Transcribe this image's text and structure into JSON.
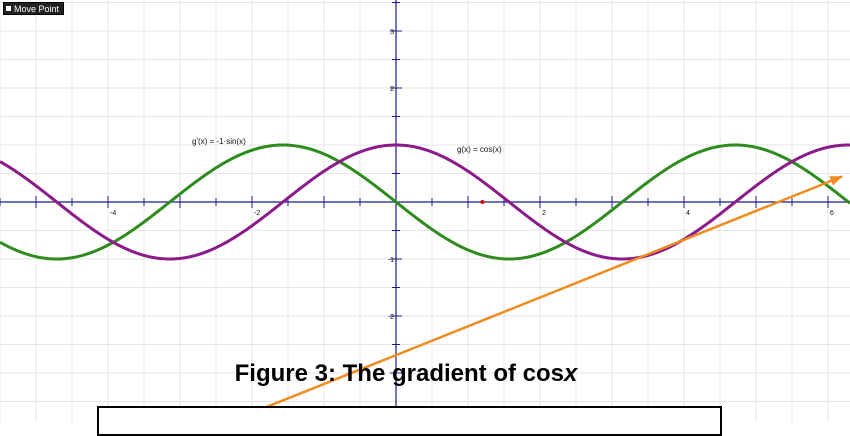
{
  "toolbar": {
    "move_point_label": "Move Point"
  },
  "caption": {
    "prefix": "Figure 3: The gradient of cos",
    "var": "x"
  },
  "chart_data": {
    "type": "line",
    "title": "Figure 3: The gradient of cosx",
    "xlim": [
      -6.9,
      6.3
    ],
    "ylim": [
      -3.4,
      3.5
    ],
    "x_tick_labels": [
      -4,
      -2,
      2,
      4,
      6
    ],
    "y_tick_labels": [
      3,
      2,
      -1,
      -2
    ],
    "grid": true,
    "series": [
      {
        "name": "g'(x) = -1·sin(x)",
        "function": "-sin(x)",
        "color": "#2e8b1e"
      },
      {
        "name": "g(x) = cos(x)",
        "function": "cos(x)",
        "color": "#8b1a8b"
      }
    ],
    "labels": {
      "derivative": "g'(x) = -1·sin(x)",
      "function": "g(x) = cos(x)"
    },
    "tangent_line": {
      "color": "#f08c1e",
      "x": [
        -2.2,
        6.2
      ],
      "y": [
        -3.8,
        0.45
      ]
    },
    "point": {
      "x": 1.2,
      "y": 0,
      "color": "#cc0000"
    },
    "colors": {
      "axis": "#1a1a8c",
      "grid": "#e6e6e6"
    }
  }
}
